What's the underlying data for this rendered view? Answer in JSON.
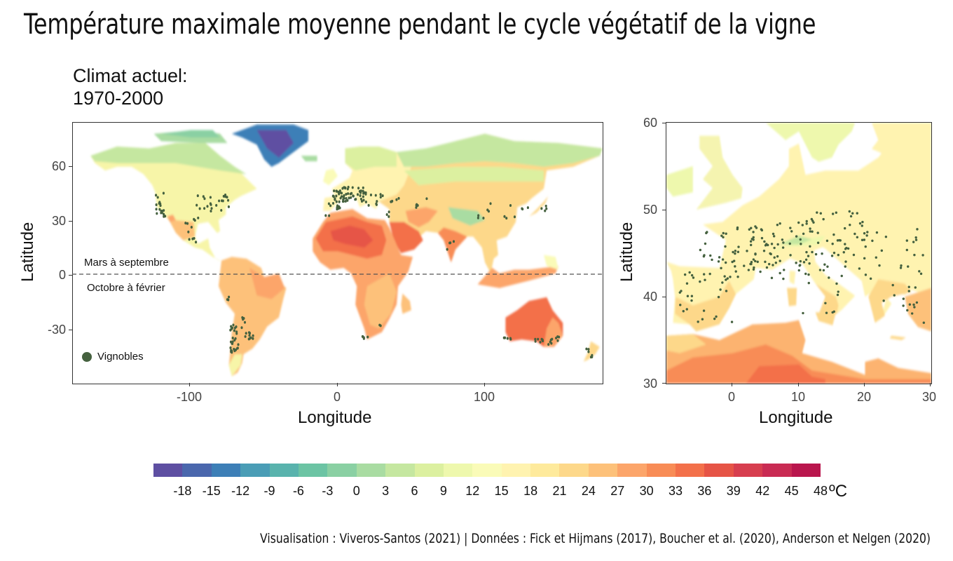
{
  "title": "Température maximale moyenne pendant le cycle végétatif de la vigne",
  "subtitle_line1": "Climat actuel:",
  "subtitle_line2": "1970-2000",
  "world_map": {
    "x_axis_label": "Longitude",
    "y_axis_label": "Latitude",
    "x_ticks": [
      "-100",
      "0",
      "100"
    ],
    "y_ticks": [
      "60",
      "30",
      "0",
      "-30"
    ],
    "x_range": [
      -180,
      180
    ],
    "y_range": [
      -58,
      84
    ],
    "equator_label_north": "Mars à septembre",
    "equator_label_south": "Octobre à février",
    "legend_label": "Vignobles"
  },
  "europe_map": {
    "x_axis_label": "Longitude",
    "y_axis_label": "Latitude",
    "x_ticks": [
      "0",
      "10",
      "20",
      "30"
    ],
    "y_ticks": [
      "60",
      "50",
      "40",
      "30"
    ],
    "x_range": [
      -10,
      30
    ],
    "y_range": [
      30,
      60
    ]
  },
  "color_scale": {
    "labels": [
      "-18",
      "-15",
      "-12",
      "-9",
      "-6",
      "-3",
      "0",
      "3",
      "6",
      "9",
      "12",
      "15",
      "18",
      "21",
      "24",
      "27",
      "30",
      "33",
      "36",
      "39",
      "42",
      "45",
      "48"
    ],
    "unit": "ºC",
    "colors": [
      "#5e4fa2",
      "#4a67ad",
      "#3d7fb7",
      "#4a9db6",
      "#59b3ad",
      "#6cc4a4",
      "#8ad0a3",
      "#a9dca2",
      "#c5e7a0",
      "#dcf0a0",
      "#eef8ad",
      "#fafbb8",
      "#fff3b0",
      "#feea9c",
      "#fdd88a",
      "#fdc17a",
      "#fca56a",
      "#f88c56",
      "#f3704a",
      "#e65446",
      "#d73e4f",
      "#c92b53",
      "#b9164d"
    ]
  },
  "vineyard_color": "#45613f",
  "caption": "Visualisation : Viveros-Santos (2021) | Données : Fick et Hijmans (2017), Boucher et al. (2020), Anderson et Nelgen (2020)"
}
